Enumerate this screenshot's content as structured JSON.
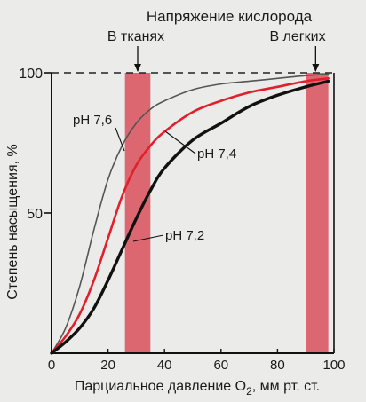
{
  "chart_data": {
    "type": "line",
    "title": "Напряжение кислорода",
    "xlabel_main": "Парциальное давление O",
    "xlabel_sub": "2",
    "xlabel_tail": ", мм рт. ст.",
    "ylabel": "Степень насыщения, %",
    "xlim": [
      0,
      100
    ],
    "ylim": [
      0,
      100
    ],
    "x_ticks": [
      "0",
      "20",
      "40",
      "60",
      "80",
      "100"
    ],
    "y_ticks": [
      "50",
      "100"
    ],
    "y_tick_values": [
      50,
      100
    ],
    "x_tick_values": [
      0,
      20,
      40,
      60,
      80,
      100
    ],
    "bands": [
      {
        "label": "В тканях",
        "from": 26,
        "to": 35,
        "color": "#d9505a"
      },
      {
        "label": "В легких",
        "from": 90,
        "to": 98,
        "color": "#d9505a"
      }
    ],
    "reference_line": {
      "y": 100,
      "style": "dashed"
    },
    "series": [
      {
        "name": "pH 7,6",
        "color": "#555555",
        "x": [
          0,
          5,
          10,
          15,
          20,
          25,
          30,
          35,
          40,
          50,
          60,
          70,
          80,
          90,
          98
        ],
        "y": [
          0,
          9,
          24,
          44,
          62,
          74,
          82,
          87,
          90,
          94,
          96,
          97,
          98,
          99,
          99.5
        ]
      },
      {
        "name": "pH 7,4",
        "color": "#e0202a",
        "x": [
          0,
          5,
          10,
          15,
          20,
          25,
          30,
          35,
          40,
          50,
          60,
          70,
          80,
          90,
          98
        ],
        "y": [
          0,
          6,
          14,
          26,
          41,
          56,
          67,
          74,
          79,
          86,
          90,
          93,
          95,
          97,
          98
        ]
      },
      {
        "name": "pH 7,2",
        "color": "#111111",
        "x": [
          0,
          5,
          10,
          15,
          20,
          25,
          30,
          35,
          40,
          50,
          60,
          70,
          80,
          90,
          98
        ],
        "y": [
          0,
          4,
          9,
          16,
          26,
          37,
          48,
          58,
          66,
          76,
          82,
          88,
          92,
          95,
          97
        ]
      }
    ]
  }
}
